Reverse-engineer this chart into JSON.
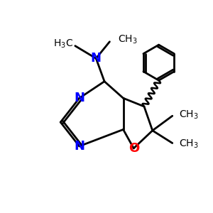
{
  "bg_color": "#ffffff",
  "atom_colors": {
    "N": "#0000ff",
    "O": "#ff0000",
    "C": "#000000"
  },
  "bond_color": "#000000",
  "bond_width": 2.0,
  "figsize": [
    3.0,
    3.0
  ],
  "dpi": 100
}
